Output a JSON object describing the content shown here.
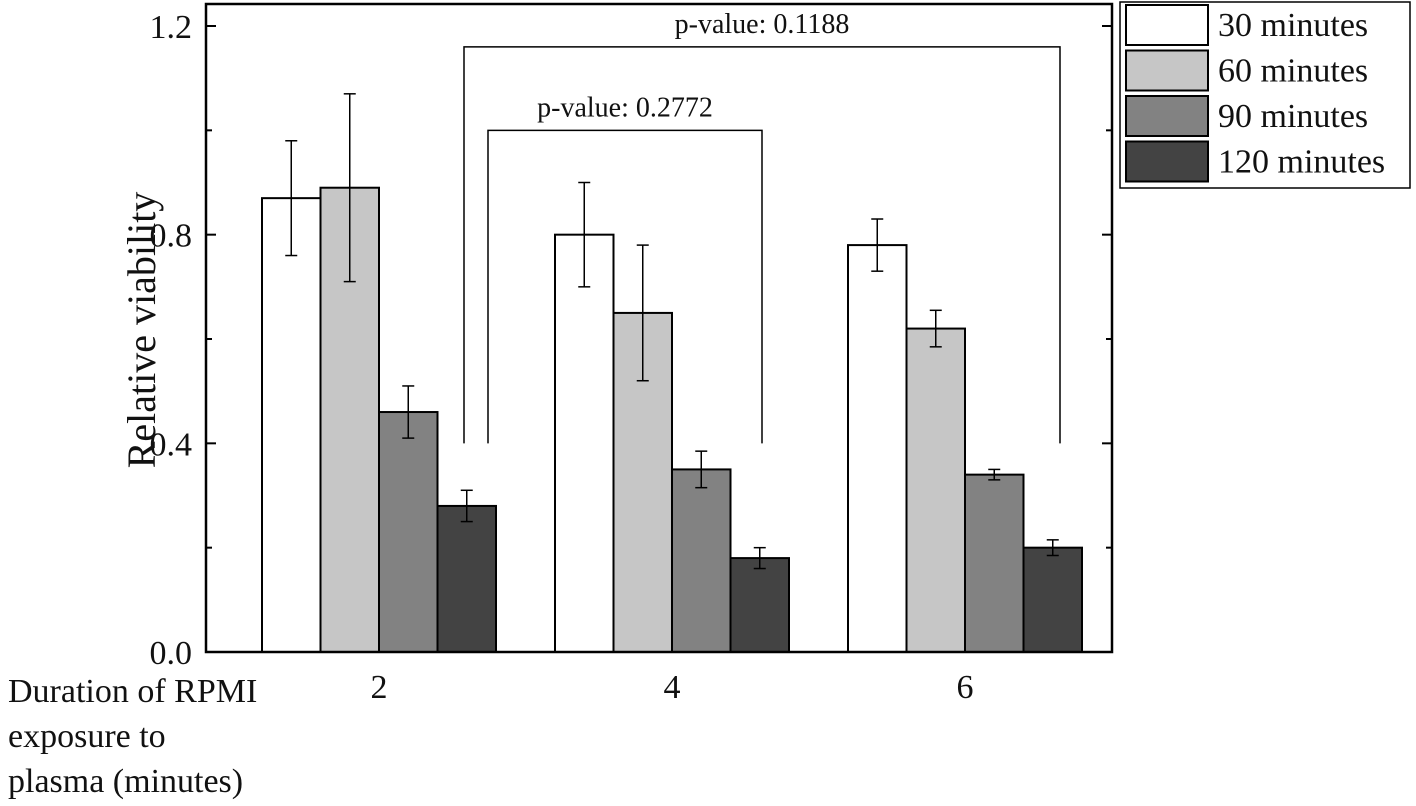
{
  "chart_data": {
    "type": "bar",
    "categories": [
      "2",
      "4",
      "6"
    ],
    "series": [
      {
        "name": "30 minutes",
        "color": "#ffffff",
        "values": [
          0.87,
          0.8,
          0.78
        ],
        "errors": [
          0.11,
          0.1,
          0.05
        ]
      },
      {
        "name": "60 minutes",
        "color": "#c6c6c6",
        "values": [
          0.89,
          0.65,
          0.62
        ],
        "errors": [
          0.18,
          0.13,
          0.035
        ]
      },
      {
        "name": "90 minutes",
        "color": "#828282",
        "values": [
          0.46,
          0.35,
          0.34
        ],
        "errors": [
          0.05,
          0.035,
          0.01
        ]
      },
      {
        "name": "120 minutes",
        "color": "#434343",
        "values": [
          0.28,
          0.18,
          0.2
        ],
        "errors": [
          0.03,
          0.02,
          0.015
        ]
      }
    ],
    "xlabel": "Duration of RPMI exposure to plasma (minutes)",
    "xlabel_lines": [
      "Duration of RPMI",
      "exposure to",
      "plasma (minutes)"
    ],
    "ylabel": "Relative viability",
    "ylim": [
      0.0,
      1.2
    ],
    "yticks": [
      "0.0",
      "0.4",
      "0.8",
      "1.2"
    ],
    "grid": false,
    "legend_position": "top-right, outside plot",
    "annotations": [
      {
        "text": "p-value: 0.2772",
        "from_category": 0,
        "to_category": 1,
        "level": 1.0
      },
      {
        "text": "p-value: 0.1188",
        "from_category": 0,
        "to_category": 2,
        "level": 1.16
      }
    ]
  }
}
